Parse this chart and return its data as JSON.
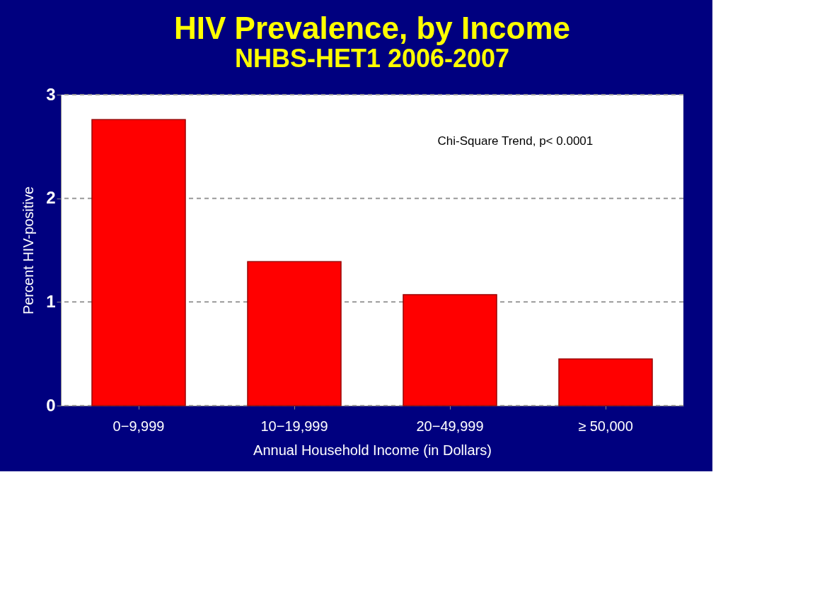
{
  "chart_data": {
    "type": "bar",
    "title": "HIV Prevalence, by Income",
    "subtitle": "NHBS-HET1 2006-2007",
    "xlabel": "Annual Household Income (in Dollars)",
    "ylabel": "Percent HIV-positive",
    "categories": [
      "0−9,999",
      "10−19,999",
      "20−49,999",
      "≥ 50,000"
    ],
    "values": [
      2.76,
      1.39,
      1.07,
      0.45
    ],
    "color": "#ff0000",
    "ylim": [
      0,
      3
    ],
    "yticks": [
      0,
      1,
      2,
      3
    ],
    "grid": "y",
    "annotations": [
      "Chi-Square Trend, p< 0.0001"
    ]
  }
}
